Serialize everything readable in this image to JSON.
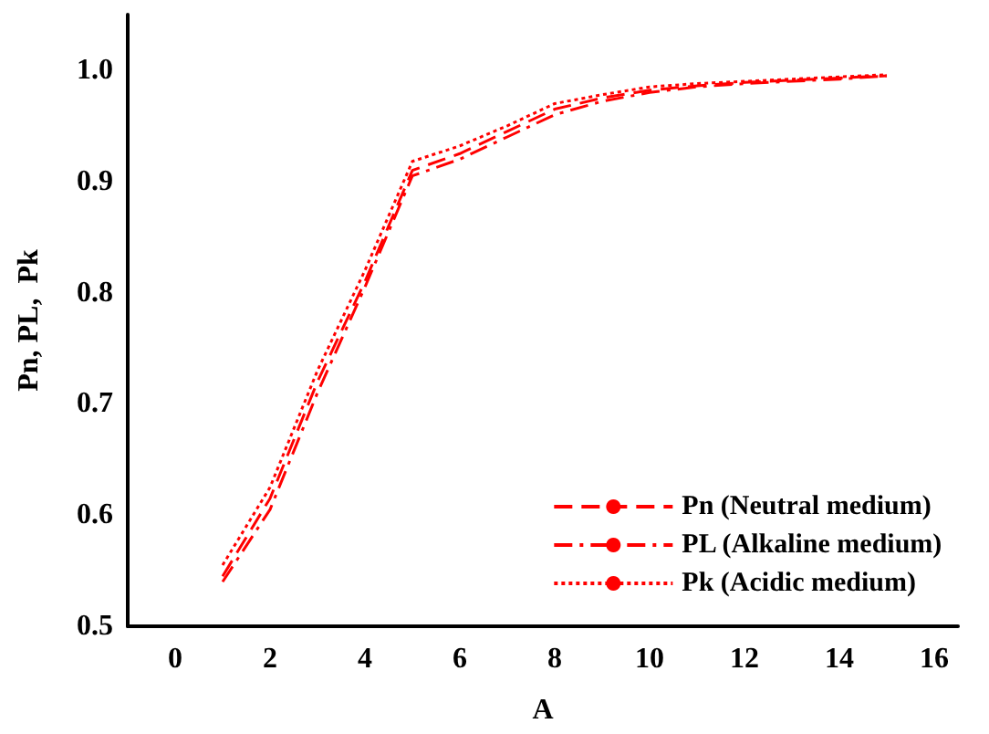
{
  "chart_data": {
    "type": "line",
    "xlabel": "A",
    "ylabel": "Pn, PL,  Pk",
    "x": [
      1,
      2,
      3,
      4,
      5,
      6,
      7,
      8,
      9,
      10,
      11,
      12,
      13,
      14,
      15
    ],
    "series": [
      {
        "name": "Pn (Neutral medium)",
        "color": "#ff0000",
        "line_style": "dashed",
        "values": [
          0.545,
          0.615,
          0.72,
          0.81,
          0.91,
          0.925,
          0.945,
          0.965,
          0.975,
          0.982,
          0.986,
          0.989,
          0.991,
          0.993,
          0.995
        ]
      },
      {
        "name": "PL (Alkaline medium)",
        "color": "#ff0000",
        "line_style": "dashdot",
        "values": [
          0.54,
          0.605,
          0.71,
          0.805,
          0.905,
          0.92,
          0.94,
          0.96,
          0.972,
          0.98,
          0.985,
          0.988,
          0.99,
          0.992,
          0.995
        ]
      },
      {
        "name": "Pk (Acidic medium)",
        "color": "#ff0000",
        "line_style": "dotted",
        "values": [
          0.555,
          0.625,
          0.73,
          0.82,
          0.918,
          0.932,
          0.95,
          0.97,
          0.978,
          0.985,
          0.988,
          0.99,
          0.992,
          0.994,
          0.996
        ]
      }
    ],
    "xlim": [
      -1,
      16.5
    ],
    "xticks": [
      0,
      2,
      4,
      6,
      8,
      10,
      12,
      14,
      16
    ],
    "ylim": [
      0.5,
      1.05
    ],
    "yticks": [
      0.5,
      0.6,
      0.7,
      0.8,
      0.9,
      {
        "value": 1,
        "label": "1.0"
      }
    ],
    "grid": false,
    "legend": "bottom right",
    "marker": "none"
  }
}
